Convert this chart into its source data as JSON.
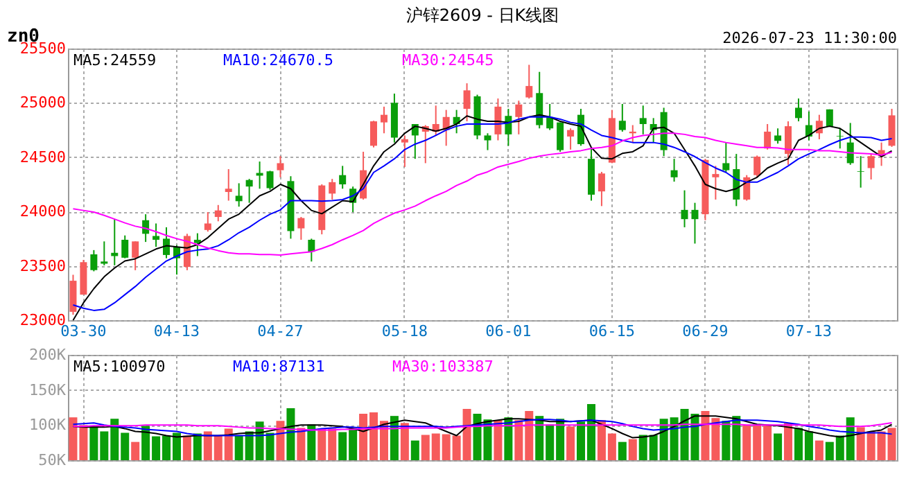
{
  "chart_data": [
    {
      "type": "candlestick",
      "title": "沪锌2609 - 日K线图",
      "annotations": [
        "zn0",
        "2026-07-23 11:30:00"
      ],
      "categories": [
        null,
        "03-30",
        null,
        null,
        null,
        null,
        null,
        null,
        null,
        null,
        "04-13",
        null,
        null,
        null,
        null,
        null,
        null,
        null,
        null,
        null,
        "04-27",
        null,
        null,
        null,
        null,
        null,
        null,
        null,
        null,
        null,
        null,
        null,
        "05-18",
        null,
        null,
        null,
        null,
        null,
        null,
        null,
        null,
        null,
        "06-01",
        null,
        null,
        null,
        null,
        null,
        null,
        null,
        null,
        null,
        "06-15",
        null,
        null,
        null,
        null,
        null,
        null,
        null,
        null,
        "06-29",
        null,
        null,
        null,
        null,
        null,
        null,
        null,
        null,
        null,
        "07-13",
        null,
        null,
        null,
        null,
        null,
        null,
        null,
        null
      ],
      "ohlc": [
        [
          23077,
          23418,
          23050,
          23363
        ],
        [
          23235,
          23555,
          23235,
          23534
        ],
        [
          23606,
          23645,
          23450,
          23461
        ],
        [
          23540,
          23725,
          23505,
          23520
        ],
        [
          23620,
          23930,
          23505,
          23590
        ],
        [
          23740,
          23780,
          23570,
          23575
        ],
        [
          23575,
          23725,
          23460,
          23725
        ],
        [
          23920,
          23975,
          23720,
          23795
        ],
        [
          23775,
          23890,
          23675,
          23740
        ],
        [
          23750,
          23855,
          23570,
          23600
        ],
        [
          23675,
          23690,
          23420,
          23570
        ],
        [
          23490,
          23795,
          23460,
          23775
        ],
        [
          23740,
          23800,
          23590,
          23710
        ],
        [
          23830,
          23995,
          23815,
          23890
        ],
        [
          23950,
          24060,
          23910,
          24010
        ],
        [
          24180,
          24390,
          24100,
          24210
        ],
        [
          24145,
          24260,
          24045,
          24095
        ],
        [
          24290,
          24300,
          24080,
          24230
        ],
        [
          24355,
          24460,
          24210,
          24330
        ],
        [
          24370,
          24375,
          24200,
          24215
        ],
        [
          24380,
          24510,
          24315,
          24445
        ],
        [
          24280,
          24325,
          23750,
          23820
        ],
        [
          23845,
          23950,
          23740,
          23940
        ],
        [
          23740,
          23750,
          23540,
          23630
        ],
        [
          23830,
          24250,
          23790,
          24240
        ],
        [
          24165,
          24300,
          24110,
          24270
        ],
        [
          24335,
          24420,
          24210,
          24250
        ],
        [
          24210,
          24230,
          23995,
          24080
        ],
        [
          24120,
          24550,
          24110,
          24380
        ],
        [
          24605,
          24835,
          24590,
          24830
        ],
        [
          24820,
          24965,
          24720,
          24890
        ],
        [
          25000,
          25085,
          24635,
          24680
        ],
        [
          24635,
          24700,
          24410,
          24665
        ],
        [
          24805,
          24805,
          24485,
          24700
        ],
        [
          24735,
          24795,
          24445,
          24785
        ],
        [
          24735,
          24975,
          24700,
          24805
        ],
        [
          24750,
          24935,
          24605,
          24870
        ],
        [
          24870,
          24935,
          24720,
          24805
        ],
        [
          24945,
          25180,
          24830,
          25115
        ],
        [
          25060,
          25075,
          24665,
          24700
        ],
        [
          24700,
          24720,
          24565,
          24655
        ],
        [
          24710,
          25040,
          24655,
          24965
        ],
        [
          24880,
          24945,
          24605,
          24710
        ],
        [
          24870,
          25020,
          24710,
          24985
        ],
        [
          25050,
          25350,
          25040,
          25155
        ],
        [
          25090,
          25285,
          24765,
          24795
        ],
        [
          24870,
          24990,
          24750,
          24765
        ],
        [
          24820,
          24820,
          24550,
          24565
        ],
        [
          24690,
          24765,
          24570,
          24750
        ],
        [
          24890,
          24945,
          24605,
          24620
        ],
        [
          24485,
          24590,
          24100,
          24155
        ],
        [
          24185,
          24365,
          24050,
          24350
        ],
        [
          24450,
          24935,
          24445,
          24860
        ],
        [
          24835,
          24990,
          24735,
          24750
        ],
        [
          24720,
          24795,
          24635,
          24735
        ],
        [
          24860,
          24975,
          24710,
          24805
        ],
        [
          24805,
          24860,
          24635,
          24750
        ],
        [
          24915,
          24955,
          24510,
          24565
        ],
        [
          24380,
          24485,
          24275,
          24315
        ],
        [
          24015,
          24195,
          23855,
          23930
        ],
        [
          24015,
          24080,
          23705,
          23930
        ],
        [
          23975,
          24485,
          23920,
          24475
        ],
        [
          24315,
          24420,
          24110,
          24345
        ],
        [
          24445,
          24635,
          24365,
          24380
        ],
        [
          24390,
          24530,
          24050,
          24110
        ],
        [
          24110,
          24335,
          24100,
          24315
        ],
        [
          24335,
          24515,
          24315,
          24505
        ],
        [
          24580,
          24805,
          24570,
          24735
        ],
        [
          24700,
          24765,
          24625,
          24650
        ],
        [
          24530,
          24830,
          24430,
          24785
        ],
        [
          24955,
          25040,
          24830,
          24860
        ],
        [
          24795,
          24920,
          24655,
          24690
        ],
        [
          24720,
          24890,
          24665,
          24835
        ],
        [
          24940,
          24940,
          24785,
          24785
        ],
        [
          24695,
          24765,
          24580,
          24690
        ],
        [
          24635,
          24815,
          24430,
          24445
        ],
        [
          24370,
          24510,
          24220,
          24365
        ],
        [
          24400,
          24530,
          24295,
          24510
        ],
        [
          24510,
          24635,
          24420,
          24565
        ],
        [
          24605,
          24945,
          24595,
          24885
        ]
      ],
      "series": [
        {
          "name": "MA5:24559",
          "type": "line",
          "color": "#000000",
          "values": [
            23000,
            23160,
            23290,
            23400,
            23480,
            23545,
            23565,
            23610,
            23655,
            23685,
            23675,
            23665,
            23695,
            23760,
            23845,
            23930,
            23975,
            24060,
            24145,
            24185,
            24250,
            24210,
            24100,
            24010,
            23980,
            24040,
            24100,
            24090,
            24250,
            24420,
            24550,
            24620,
            24720,
            24785,
            24765,
            24740,
            24765,
            24805,
            24880,
            24850,
            24830,
            24830,
            24820,
            24830,
            24870,
            24890,
            24870,
            24830,
            24805,
            24785,
            24590,
            24490,
            24485,
            24535,
            24550,
            24605,
            24765,
            24775,
            24720,
            24570,
            24420,
            24250,
            24210,
            24185,
            24210,
            24270,
            24315,
            24400,
            24445,
            24485,
            24655,
            24700,
            24765,
            24785,
            24765,
            24700,
            24635,
            24570,
            24505,
            24559
          ]
        },
        {
          "name": "MA10:24670.5",
          "type": "line",
          "color": "#0000ff",
          "values": [
            23140,
            23110,
            23090,
            23100,
            23160,
            23235,
            23310,
            23395,
            23470,
            23545,
            23590,
            23630,
            23645,
            23655,
            23685,
            23740,
            23805,
            23855,
            23920,
            23975,
            24015,
            24100,
            24100,
            24100,
            24095,
            24100,
            24110,
            24145,
            24210,
            24360,
            24420,
            24485,
            24570,
            24620,
            24655,
            24700,
            24750,
            24785,
            24805,
            24805,
            24805,
            24805,
            24815,
            24850,
            24870,
            24870,
            24870,
            24850,
            24820,
            24805,
            24750,
            24700,
            24680,
            24655,
            24635,
            24635,
            24635,
            24620,
            24590,
            24550,
            24505,
            24450,
            24400,
            24360,
            24295,
            24270,
            24270,
            24315,
            24360,
            24420,
            24485,
            24530,
            24570,
            24615,
            24655,
            24685,
            24685,
            24680,
            24655,
            24670.5
          ]
        },
        {
          "name": "MA30:24545",
          "type": "line",
          "color": "#ff00ff",
          "values": [
            24025,
            24010,
            23995,
            23965,
            23930,
            23895,
            23865,
            23845,
            23815,
            23780,
            23750,
            23725,
            23695,
            23665,
            23640,
            23620,
            23610,
            23610,
            23605,
            23605,
            23600,
            23610,
            23620,
            23630,
            23660,
            23695,
            23740,
            23780,
            23825,
            23890,
            23940,
            23985,
            24015,
            24050,
            24100,
            24145,
            24185,
            24240,
            24280,
            24335,
            24365,
            24410,
            24435,
            24460,
            24490,
            24510,
            24525,
            24535,
            24550,
            24560,
            24580,
            24590,
            24605,
            24650,
            24680,
            24700,
            24710,
            24720,
            24720,
            24710,
            24690,
            24680,
            24655,
            24635,
            24620,
            24605,
            24590,
            24590,
            24585,
            24570,
            24570,
            24570,
            24560,
            24560,
            24550,
            24540,
            24535,
            24530,
            24520,
            24545
          ]
        }
      ],
      "ylim": [
        23000,
        25500
      ],
      "yticks": [
        23000,
        23500,
        24000,
        24500,
        25000,
        25500
      ],
      "grid": true
    },
    {
      "type": "bar",
      "categories": [
        null,
        null,
        null,
        null,
        null,
        null,
        null,
        null,
        null,
        null,
        null,
        null,
        null,
        null,
        null,
        null,
        null,
        null,
        null,
        null,
        null,
        null,
        null,
        null,
        null,
        null,
        null,
        null,
        null,
        null,
        null,
        null,
        null,
        null,
        null,
        null,
        null,
        null,
        null,
        null,
        null,
        null,
        null,
        null,
        null,
        null,
        null,
        null,
        null,
        null,
        null,
        null,
        null,
        null,
        null,
        null,
        null,
        null,
        null,
        null,
        null,
        null,
        null,
        null,
        null,
        null,
        null,
        null,
        null,
        null,
        null,
        null,
        null,
        null,
        null,
        null,
        null,
        null,
        null,
        null
      ],
      "values": [
        111000,
        100000,
        98000,
        91000,
        109000,
        89000,
        76000,
        99000,
        84000,
        85000,
        89000,
        85000,
        88000,
        91000,
        85000,
        95000,
        85000,
        91000,
        105000,
        89000,
        106000,
        124000,
        96000,
        101000,
        95000,
        95000,
        90000,
        96000,
        116000,
        118000,
        106000,
        113000,
        103000,
        78000,
        86000,
        88000,
        87000,
        85000,
        123000,
        116000,
        108000,
        107000,
        111000,
        107000,
        120000,
        113000,
        101000,
        109000,
        98000,
        105000,
        130000,
        107000,
        88000,
        76000,
        80000,
        86000,
        86000,
        109000,
        111000,
        123000,
        116000,
        120000,
        110000,
        106000,
        113000,
        100000,
        100000,
        100000,
        88000,
        103000,
        96000,
        91000,
        78000,
        76000,
        85000,
        111000,
        97000,
        91000,
        91000,
        96000
      ],
      "colors": [
        "#f65b5b",
        "#f65b5b",
        "#0a9e0a",
        "#0a9e0a",
        "#0a9e0a",
        "#0a9e0a",
        "#f65b5b",
        "#0a9e0a",
        "#0a9e0a",
        "#0a9e0a",
        "#0a9e0a",
        "#f65b5b",
        "#0a9e0a",
        "#f65b5b",
        "#f65b5b",
        "#f65b5b",
        "#0a9e0a",
        "#0a9e0a",
        "#0a9e0a",
        "#0a9e0a",
        "#f65b5b",
        "#0a9e0a",
        "#f65b5b",
        "#0a9e0a",
        "#f65b5b",
        "#f65b5b",
        "#0a9e0a",
        "#0a9e0a",
        "#f65b5b",
        "#f65b5b",
        "#f65b5b",
        "#0a9e0a",
        "#f65b5b",
        "#0a9e0a",
        "#f65b5b",
        "#f65b5b",
        "#f65b5b",
        "#f65b5b",
        "#f65b5b",
        "#0a9e0a",
        "#0a9e0a",
        "#f65b5b",
        "#0a9e0a",
        "#f65b5b",
        "#f65b5b",
        "#0a9e0a",
        "#0a9e0a",
        "#0a9e0a",
        "#f65b5b",
        "#0a9e0a",
        "#0a9e0a",
        "#f65b5b",
        "#f65b5b",
        "#0a9e0a",
        "#f65b5b",
        "#0a9e0a",
        "#0a9e0a",
        "#0a9e0a",
        "#0a9e0a",
        "#0a9e0a",
        "#0a9e0a",
        "#f65b5b",
        "#f65b5b",
        "#0a9e0a",
        "#0a9e0a",
        "#f65b5b",
        "#f65b5b",
        "#f65b5b",
        "#0a9e0a",
        "#f65b5b",
        "#0a9e0a",
        "#0a9e0a",
        "#f65b5b",
        "#0a9e0a",
        "#0a9e0a",
        "#0a9e0a",
        "#f65b5b",
        "#f65b5b",
        "#f65b5b",
        "#f65b5b"
      ],
      "series": [
        {
          "name": "MA5:100970",
          "type": "line",
          "color": "#000000",
          "values": [
            98000,
            97000,
            97000,
            97000,
            98000,
            95000,
            91000,
            90000,
            88000,
            85000,
            83000,
            84000,
            85000,
            85000,
            85000,
            86000,
            88000,
            89000,
            89000,
            92000,
            95000,
            98000,
            100000,
            100000,
            100000,
            99000,
            98000,
            95000,
            91000,
            96000,
            101000,
            104000,
            107000,
            105000,
            103000,
            97000,
            91000,
            85000,
            98000,
            102000,
            105000,
            107000,
            109000,
            109000,
            108000,
            107000,
            105000,
            105000,
            105000,
            106000,
            107000,
            101000,
            95000,
            88000,
            82000,
            83000,
            85000,
            91000,
            98000,
            106000,
            113000,
            113000,
            113000,
            111000,
            109000,
            105000,
            101000,
            100000,
            99000,
            97000,
            95000,
            91000,
            88000,
            85000,
            83000,
            85000,
            88000,
            91000,
            93000,
            100970
          ]
        },
        {
          "name": "MA10:87131",
          "type": "line",
          "color": "#0000ff",
          "values": [
            101000,
            102000,
            103000,
            100000,
            98000,
            97000,
            96000,
            94000,
            93000,
            92000,
            91000,
            88000,
            86000,
            85000,
            85000,
            85000,
            85000,
            85000,
            85000,
            86000,
            88000,
            90000,
            91000,
            93000,
            95000,
            96000,
            97000,
            97000,
            96000,
            97000,
            98000,
            98000,
            98000,
            98000,
            98000,
            98000,
            97000,
            98000,
            99000,
            100000,
            101000,
            102000,
            103000,
            105000,
            107000,
            108000,
            108000,
            107000,
            105000,
            106000,
            107000,
            106000,
            105000,
            102000,
            98000,
            95000,
            93000,
            94000,
            95000,
            97000,
            98000,
            101000,
            103000,
            105000,
            107000,
            107000,
            107000,
            106000,
            105000,
            103000,
            101000,
            98000,
            96000,
            93000,
            91000,
            90000,
            89000,
            89000,
            89000,
            87131
          ]
        },
        {
          "name": "MA30:103387",
          "type": "line",
          "color": "#ff00ff",
          "values": [
            98000,
            98000,
            99000,
            99000,
            99000,
            99000,
            99000,
            100000,
            100000,
            100000,
            100000,
            100000,
            99000,
            99000,
            99000,
            98000,
            97000,
            96000,
            96000,
            95000,
            95000,
            94000,
            94000,
            93000,
            93000,
            93000,
            94000,
            94000,
            95000,
            95000,
            95000,
            95000,
            96000,
            96000,
            96000,
            96000,
            96000,
            97000,
            98000,
            98000,
            99000,
            99000,
            99000,
            99000,
            100000,
            100000,
            100000,
            100000,
            100000,
            100000,
            100000,
            100000,
            100000,
            100000,
            100000,
            100000,
            100000,
            100000,
            100000,
            101000,
            101000,
            101000,
            101000,
            101000,
            101000,
            100000,
            100000,
            100000,
            100000,
            100000,
            100000,
            100000,
            100000,
            99000,
            98000,
            98000,
            98000,
            99000,
            101000,
            103387
          ]
        }
      ],
      "ylim": [
        50000,
        200000
      ],
      "yticks": [
        {
          "value": 50000,
          "label": "50K"
        },
        {
          "value": 100000,
          "label": "100K"
        },
        {
          "value": 150000,
          "label": "150K"
        },
        {
          "value": 200000,
          "label": "200K"
        }
      ],
      "grid": true,
      "tick_labels": "y"
    }
  ]
}
